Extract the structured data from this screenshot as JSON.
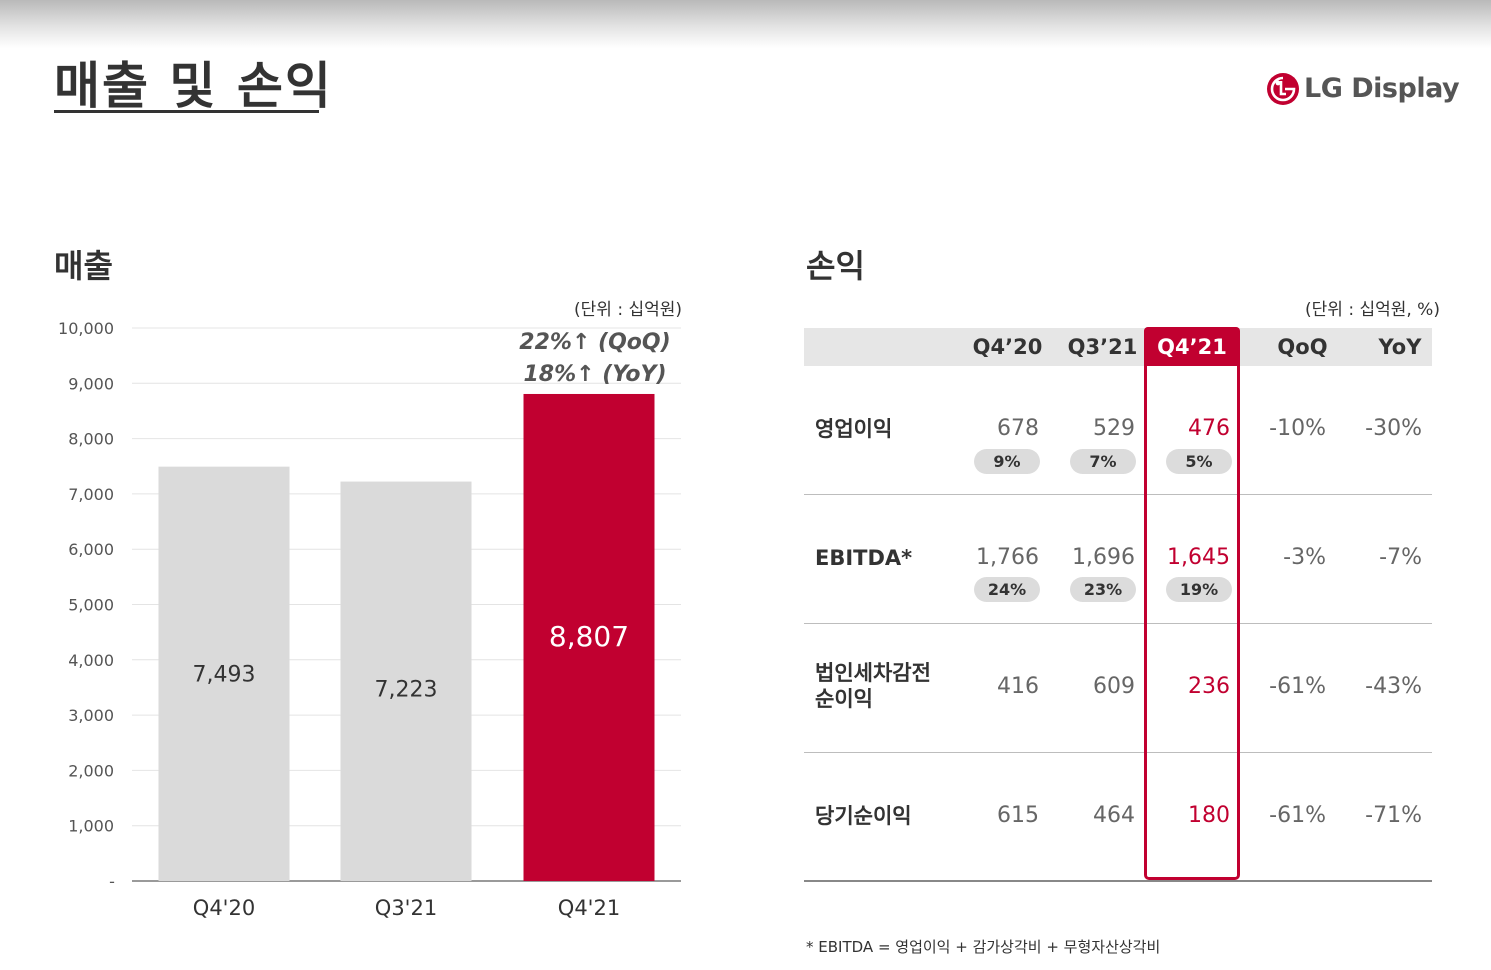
{
  "page": {
    "title": "매출 및 손익",
    "logo_text": "LG Display",
    "footnote": "* EBITDA = 영업이익 + 감가상각비 + 무형자산상각비"
  },
  "colors": {
    "accent": "#c10030",
    "bar_gray": "#dadada",
    "table_header_bg": "#e6e6e6"
  },
  "revenue": {
    "section_title": "매출",
    "unit_note": "(단위 : 십억원)",
    "growth_qoq": "22%↑ (QoQ)",
    "growth_yoy": "18%↑ (YoY)"
  },
  "chart_data": {
    "type": "bar",
    "title": "매출",
    "xlabel": "",
    "ylabel": "",
    "categories": [
      "Q4'20",
      "Q3'21",
      "Q4'21"
    ],
    "values": [
      7493,
      7223,
      8807
    ],
    "value_labels": [
      "7,493",
      "7,223",
      "8,807"
    ],
    "highlight_index": 2,
    "ylim": [
      0,
      10000
    ],
    "y_ticks": [
      0,
      1000,
      2000,
      3000,
      4000,
      5000,
      6000,
      7000,
      8000,
      9000,
      10000
    ],
    "y_tick_labels": [
      "-",
      "1,000",
      "2,000",
      "3,000",
      "4,000",
      "5,000",
      "6,000",
      "7,000",
      "8,000",
      "9,000",
      "10,000"
    ],
    "grid": true,
    "legend": "none"
  },
  "pl": {
    "section_title": "손익",
    "unit_note": "(단위 : 십억원, %)",
    "columns": [
      "Q4’20",
      "Q3’21",
      "Q4’21",
      "QoQ",
      "YoY"
    ],
    "highlight_column": 2,
    "rows": [
      {
        "label": "영업이익",
        "values": [
          "678",
          "529",
          "476",
          "-10%",
          "-30%"
        ],
        "margins": [
          "9%",
          "7%",
          "5%"
        ]
      },
      {
        "label": "EBITDA*",
        "values": [
          "1,766",
          "1,696",
          "1,645",
          "-3%",
          "-7%"
        ],
        "margins": [
          "24%",
          "23%",
          "19%"
        ]
      },
      {
        "label": "법인세차감전\n순이익",
        "label_line1": "법인세차감전",
        "label_line2": "순이익",
        "values": [
          "416",
          "609",
          "236",
          "-61%",
          "-43%"
        ]
      },
      {
        "label": "당기순이익",
        "values": [
          "615",
          "464",
          "180",
          "-61%",
          "-71%"
        ]
      }
    ]
  }
}
